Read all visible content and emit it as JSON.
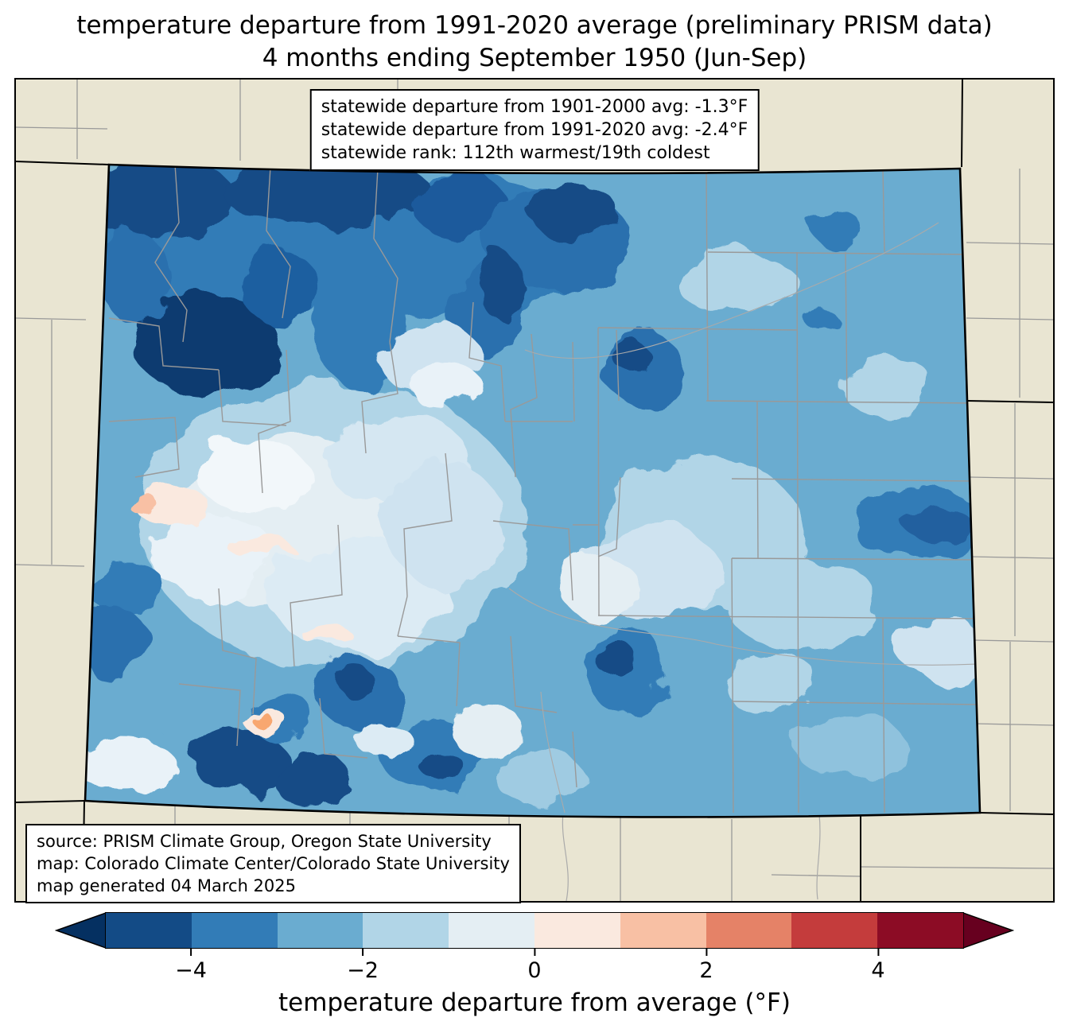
{
  "title": {
    "line1": "temperature departure from 1991-2020 average (preliminary PRISM data)",
    "line2": "4 months ending September 1950 (Jun-Sep)"
  },
  "stats_box": {
    "line1": "statewide departure from 1901-2000 avg: -1.3°F",
    "line2": "statewide departure from 1991-2020 avg: -2.4°F",
    "line3": "statewide rank: 112th warmest/19th coldest"
  },
  "source_box": {
    "line1": "source: PRISM Climate Group, Oregon State University",
    "line2": "map: Colorado Climate Center/Colorado State University",
    "line3": "map generated 04 March 2025"
  },
  "colorbar": {
    "label": "temperature departure from average (°F)",
    "ticks": [
      "−4",
      "−2",
      "0",
      "2",
      "4"
    ],
    "tick_values": [
      -4,
      -2,
      0,
      2,
      4
    ],
    "range": [
      -5,
      5
    ],
    "under_color": "#053061",
    "over_color": "#67001f",
    "segment_colors": [
      "#134b86",
      "#327cb7",
      "#6aacd0",
      "#b1d5e7",
      "#e4eef3",
      "#fae9df",
      "#f8c0a4",
      "#e58267",
      "#c43c3c",
      "#8c0c25"
    ]
  },
  "map": {
    "background_color": "#e9e5d2",
    "county_line_color": "#999999",
    "state_border_color": "#000000",
    "dominant_fill": "#6aacd0"
  }
}
